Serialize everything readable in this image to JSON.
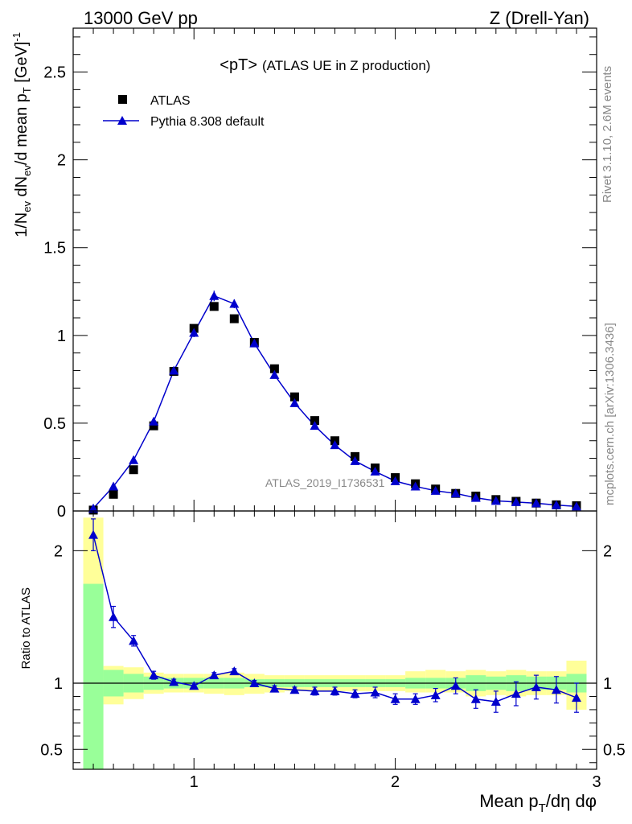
{
  "header": {
    "left": "13000 GeV pp",
    "right": "Z (Drell-Yan)"
  },
  "side_text": {
    "rivet": "Rivet 3.1.10,  2.6M events",
    "mcplots": "mcplots.cern.ch [arXiv:1306.3436]"
  },
  "chart_data": [
    {
      "type": "scatter",
      "title_main": "<pT>",
      "title_sub": "(ATLAS UE in Z production)",
      "watermark": "ATLAS_2019_I1736531",
      "ylabel": "1/N_ev dN_ev/d mean p_T [GeV]^-1",
      "xlim": [
        0.4,
        3.0
      ],
      "ylim": [
        0,
        2.75
      ],
      "y_ticks": [
        0,
        0.5,
        1,
        1.5,
        2,
        2.5
      ],
      "y_tick_labels": [
        "0",
        "0.5",
        "1",
        "1.5",
        "2",
        "2.5"
      ],
      "legend_position": "top-left",
      "series": [
        {
          "name": "ATLAS",
          "marker": "square",
          "color": "#000000",
          "x": [
            0.5,
            0.6,
            0.7,
            0.8,
            0.9,
            1.0,
            1.1,
            1.2,
            1.3,
            1.4,
            1.5,
            1.6,
            1.7,
            1.8,
            1.9,
            2.0,
            2.1,
            2.2,
            2.3,
            2.4,
            2.5,
            2.6,
            2.7,
            2.8,
            2.9
          ],
          "y": [
            0.005,
            0.095,
            0.235,
            0.485,
            0.795,
            1.04,
            1.165,
            1.095,
            0.96,
            0.81,
            0.65,
            0.515,
            0.4,
            0.31,
            0.245,
            0.19,
            0.155,
            0.125,
            0.1,
            0.085,
            0.065,
            0.055,
            0.045,
            0.035,
            0.03
          ]
        },
        {
          "name": "Pythia 8.308 default",
          "marker": "triangle",
          "color": "#0000cc",
          "x": [
            0.5,
            0.6,
            0.7,
            0.8,
            0.9,
            1.0,
            1.1,
            1.2,
            1.3,
            1.4,
            1.5,
            1.6,
            1.7,
            1.8,
            1.9,
            2.0,
            2.1,
            2.2,
            2.3,
            2.4,
            2.5,
            2.6,
            2.7,
            2.8,
            2.9
          ],
          "y": [
            0.015,
            0.14,
            0.29,
            0.51,
            0.8,
            1.015,
            1.225,
            1.18,
            0.955,
            0.775,
            0.615,
            0.485,
            0.375,
            0.285,
            0.225,
            0.17,
            0.14,
            0.115,
            0.1,
            0.075,
            0.058,
            0.051,
            0.044,
            0.034,
            0.026
          ],
          "yerr": [
            0.004,
            0.01,
            0.01,
            0.02,
            0.02,
            0.025,
            0.03,
            0.025,
            0.02,
            0.015,
            0.012,
            0.01,
            0.008,
            0.006,
            0.005,
            0.005,
            0.004,
            0.004,
            0.003,
            0.003,
            0.003,
            0.003,
            0.003,
            0.002,
            0.002
          ]
        }
      ]
    },
    {
      "type": "line",
      "ylabel": "Ratio to ATLAS",
      "xlabel": "Mean p_T/dη dφ",
      "xlim": [
        0.4,
        3.0
      ],
      "ylim": [
        0.35,
        2.3
      ],
      "x_ticks": [
        1,
        2,
        3
      ],
      "x_tick_labels": [
        "1",
        "2",
        "3"
      ],
      "y_ticks": [
        0.5,
        1,
        2
      ],
      "y_tick_labels": [
        "0.5",
        "1",
        "2"
      ],
      "reference_line": 1,
      "bands": {
        "edges": [
          0.45,
          0.55,
          0.65,
          0.75,
          0.85,
          0.95,
          1.05,
          1.15,
          1.25,
          1.35,
          1.45,
          1.55,
          1.65,
          1.75,
          1.85,
          1.95,
          2.05,
          2.15,
          2.25,
          2.35,
          2.45,
          2.55,
          2.65,
          2.75,
          2.85,
          2.95
        ],
        "inner_color": "#99ff99",
        "outer_color": "#ffff99",
        "inner_lo": [
          0.3,
          0.9,
          0.93,
          0.95,
          0.96,
          0.96,
          0.96,
          0.96,
          0.97,
          0.97,
          0.97,
          0.97,
          0.97,
          0.97,
          0.97,
          0.97,
          0.96,
          0.96,
          0.96,
          0.94,
          0.95,
          0.94,
          0.95,
          0.95,
          0.93
        ],
        "inner_hi": [
          1.75,
          1.1,
          1.07,
          1.05,
          1.04,
          1.04,
          1.04,
          1.04,
          1.03,
          1.03,
          1.03,
          1.03,
          1.03,
          1.03,
          1.03,
          1.03,
          1.04,
          1.04,
          1.04,
          1.06,
          1.05,
          1.06,
          1.05,
          1.05,
          1.07
        ],
        "outer_lo": [
          0.3,
          0.84,
          0.88,
          0.92,
          0.93,
          0.93,
          0.92,
          0.91,
          0.92,
          0.93,
          0.94,
          0.94,
          0.94,
          0.94,
          0.94,
          0.94,
          0.93,
          0.93,
          0.93,
          0.9,
          0.91,
          0.9,
          0.91,
          0.91,
          0.8
        ],
        "outer_hi": [
          2.25,
          1.13,
          1.12,
          1.08,
          1.07,
          1.07,
          1.07,
          1.08,
          1.07,
          1.06,
          1.06,
          1.06,
          1.06,
          1.06,
          1.06,
          1.06,
          1.09,
          1.1,
          1.09,
          1.1,
          1.09,
          1.1,
          1.09,
          1.09,
          1.17
        ]
      },
      "series": [
        {
          "name": "Pythia 8.308 default",
          "color": "#0000cc",
          "x": [
            0.5,
            0.6,
            0.7,
            0.8,
            0.9,
            1.0,
            1.1,
            1.2,
            1.3,
            1.4,
            1.5,
            1.6,
            1.7,
            1.8,
            1.9,
            2.0,
            2.1,
            2.2,
            2.3,
            2.4,
            2.5,
            2.6,
            2.7,
            2.8,
            2.9
          ],
          "y": [
            2.12,
            1.5,
            1.32,
            1.06,
            1.01,
            0.98,
            1.06,
            1.09,
            1.0,
            0.96,
            0.95,
            0.94,
            0.94,
            0.92,
            0.93,
            0.88,
            0.88,
            0.91,
            0.98,
            0.88,
            0.86,
            0.92,
            0.97,
            0.95,
            0.89
          ],
          "yerr": [
            0.12,
            0.08,
            0.04,
            0.03,
            0.02,
            0.02,
            0.02,
            0.02,
            0.02,
            0.02,
            0.02,
            0.03,
            0.03,
            0.03,
            0.04,
            0.04,
            0.04,
            0.05,
            0.06,
            0.07,
            0.08,
            0.09,
            0.09,
            0.1,
            0.11
          ]
        }
      ]
    }
  ]
}
